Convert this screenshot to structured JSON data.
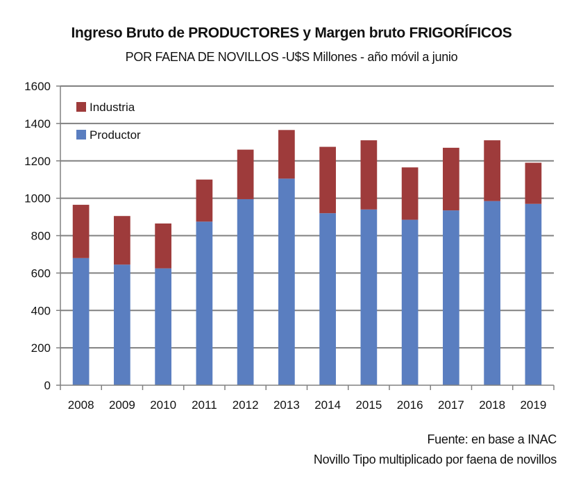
{
  "chart_data": {
    "type": "bar",
    "stacked": true,
    "title": "Ingreso Bruto de PRODUCTORES  y Margen bruto FRIGORÍFICOS",
    "subtitle": "POR FAENA DE NOVILLOS  -U$S Millones - año móvil a junio",
    "xlabel": "",
    "ylabel": "",
    "ylim": [
      0,
      1600
    ],
    "yticks": [
      0,
      200,
      400,
      600,
      800,
      1000,
      1200,
      1400,
      1600
    ],
    "grid": true,
    "legend_position": "top-left",
    "categories": [
      "2008",
      "2009",
      "2010",
      "2011",
      "2012",
      "2013",
      "2014",
      "2015",
      "2016",
      "2017",
      "2018",
      "2019"
    ],
    "series": [
      {
        "name": "Productor",
        "color": "#5A7EC0",
        "values": [
          680,
          645,
          625,
          875,
          995,
          1105,
          920,
          940,
          885,
          935,
          985,
          970
        ]
      },
      {
        "name": "Industria",
        "color": "#9E3B3B",
        "values": [
          285,
          260,
          240,
          225,
          265,
          260,
          355,
          370,
          280,
          335,
          325,
          220
        ]
      }
    ],
    "legend": [
      {
        "name": "Industria",
        "color": "#9E3B3B"
      },
      {
        "name": "Productor",
        "color": "#5A7EC0"
      }
    ]
  },
  "notes": {
    "source": "Fuente: en base a INAC",
    "method": "Novillo Tipo multiplicado  por faena de novillos"
  }
}
